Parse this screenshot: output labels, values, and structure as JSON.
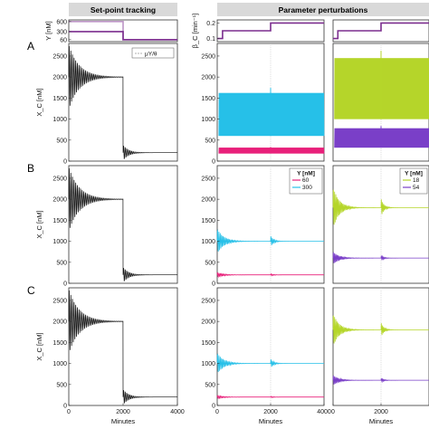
{
  "headers": {
    "left": "Set-point tracking",
    "right": "Parameter perturbations"
  },
  "row_labels": [
    "A",
    "B",
    "C"
  ],
  "colors": {
    "purple": "#7b2d8e",
    "cyan": "#27c0e8",
    "magenta": "#e8207a",
    "lime": "#b5d62a",
    "violet": "#7a3fc8",
    "black": "#111111",
    "header_bg": "#d9d9d9"
  },
  "chart_data": [
    {
      "id": "top-left-Y",
      "type": "line",
      "ylabel": "Y [nM]",
      "yticks": [
        "600",
        "300",
        "60"
      ],
      "ylim": [
        0,
        650
      ],
      "xlim": [
        0,
        4000
      ],
      "series": [
        {
          "color": "purple",
          "x": [
            0,
            2000,
            2000,
            4000
          ],
          "y": [
            300,
            300,
            60,
            60
          ]
        },
        {
          "color": "purple",
          "x": [
            0,
            2000,
            2000,
            4000
          ],
          "y": [
            600,
            600,
            60,
            60
          ],
          "opacity": 0.5
        }
      ]
    },
    {
      "id": "top-mid-param",
      "type": "line",
      "ylabel": "β_C [min⁻¹]",
      "yticks": [
        "0.2",
        "0.1"
      ],
      "ylim": [
        0.08,
        0.22
      ],
      "xlim": [
        0,
        4000
      ],
      "series": [
        {
          "color": "purple",
          "x": [
            0,
            200,
            200,
            2000,
            2000,
            4000
          ],
          "y": [
            0.1,
            0.1,
            0.15,
            0.15,
            0.2,
            0.2
          ]
        }
      ]
    },
    {
      "id": "top-right-param",
      "type": "line",
      "ylim": [
        0.08,
        0.22
      ],
      "xlim": [
        0,
        4000
      ],
      "series": [
        {
          "color": "purple",
          "x": [
            0,
            200,
            200,
            2000,
            2000,
            4000
          ],
          "y": [
            0.1,
            0.1,
            0.15,
            0.15,
            0.2,
            0.2
          ]
        }
      ]
    },
    {
      "id": "A-left",
      "type": "line",
      "ylabel": "X_C [nM]",
      "ylim": [
        0,
        2800
      ],
      "xlim": [
        0,
        4000
      ],
      "yticks": [
        "0",
        "500",
        "1000",
        "1500",
        "2000",
        "2500"
      ],
      "legend": "μY/θ",
      "series": [
        {
          "color": "black",
          "setpoints": [
            2000,
            200
          ],
          "amp0": 800
        }
      ]
    },
    {
      "id": "A-mid",
      "type": "band",
      "ylim": [
        0,
        2800
      ],
      "xlim": [
        0,
        4000
      ],
      "yticks": [
        "0",
        "500",
        "1000",
        "1500",
        "2000",
        "2500"
      ],
      "series": [
        {
          "color": "cyan",
          "x": [
            0,
            4000
          ],
          "low": 600,
          "high": 1620
        },
        {
          "color": "magenta",
          "x": [
            0,
            4000
          ],
          "low": 180,
          "high": 320
        }
      ]
    },
    {
      "id": "A-right",
      "type": "band",
      "ylim": [
        0,
        2800
      ],
      "xlim": [
        0,
        4000
      ],
      "series": [
        {
          "color": "lime",
          "x": [
            0,
            4000
          ],
          "low": 1000,
          "high": 2450
        },
        {
          "color": "violet",
          "x": [
            0,
            4000
          ],
          "low": 320,
          "high": 780
        }
      ]
    },
    {
      "id": "B-left",
      "type": "line",
      "ylabel": "X_C [nM]",
      "ylim": [
        0,
        2800
      ],
      "xlim": [
        0,
        4000
      ],
      "yticks": [
        "0",
        "500",
        "1000",
        "1500",
        "2000",
        "2500"
      ],
      "series": [
        {
          "color": "black",
          "setpoints": [
            2000,
            200
          ],
          "amp0": 800
        }
      ]
    },
    {
      "id": "B-mid",
      "type": "line",
      "ylim": [
        0,
        2800
      ],
      "xlim": [
        0,
        4000
      ],
      "yticks": [
        "0",
        "500",
        "1000",
        "1500",
        "2000",
        "2500"
      ],
      "legend_title": "Y [nM]",
      "legend_items": [
        "60",
        "300"
      ],
      "series": [
        {
          "color": "magenta",
          "level": 200,
          "amp0": 60
        },
        {
          "color": "cyan",
          "level": 1000,
          "amp0": 300
        }
      ]
    },
    {
      "id": "B-right",
      "type": "line",
      "ylim": [
        0,
        2800
      ],
      "xlim": [
        0,
        4000
      ],
      "legend_title": "Y [nM]",
      "legend_items": [
        "18",
        "54"
      ],
      "series": [
        {
          "color": "lime",
          "level": 1800,
          "amp0": 500
        },
        {
          "color": "violet",
          "level": 600,
          "amp0": 150
        }
      ]
    },
    {
      "id": "C-left",
      "type": "line",
      "ylabel": "X_C [nM]",
      "ylim": [
        0,
        2800
      ],
      "xlim": [
        0,
        4000
      ],
      "yticks": [
        "0",
        "500",
        "1000",
        "1500",
        "2000",
        "2500"
      ],
      "xticks": [
        "0",
        "2000",
        "4000"
      ],
      "xlabel": "Minutes",
      "series": [
        {
          "color": "black",
          "setpoints": [
            2000,
            200
          ],
          "amp0": 800
        }
      ]
    },
    {
      "id": "C-mid",
      "type": "line",
      "ylim": [
        0,
        2800
      ],
      "xlim": [
        0,
        4000
      ],
      "yticks": [
        "0",
        "500",
        "1000",
        "1500",
        "2000",
        "2500"
      ],
      "xticks": [
        "0",
        "2000",
        "4000"
      ],
      "xlabel": "Minutes",
      "series": [
        {
          "color": "magenta",
          "level": 200,
          "amp0": 40
        },
        {
          "color": "cyan",
          "level": 1000,
          "amp0": 250
        }
      ]
    },
    {
      "id": "C-right",
      "type": "line",
      "ylim": [
        0,
        2800
      ],
      "xlim": [
        0,
        4000
      ],
      "xticks": [
        "0",
        "2000"
      ],
      "xlabel": "Minutes",
      "series": [
        {
          "color": "lime",
          "level": 1800,
          "amp0": 400
        },
        {
          "color": "violet",
          "level": 600,
          "amp0": 120
        }
      ]
    }
  ]
}
